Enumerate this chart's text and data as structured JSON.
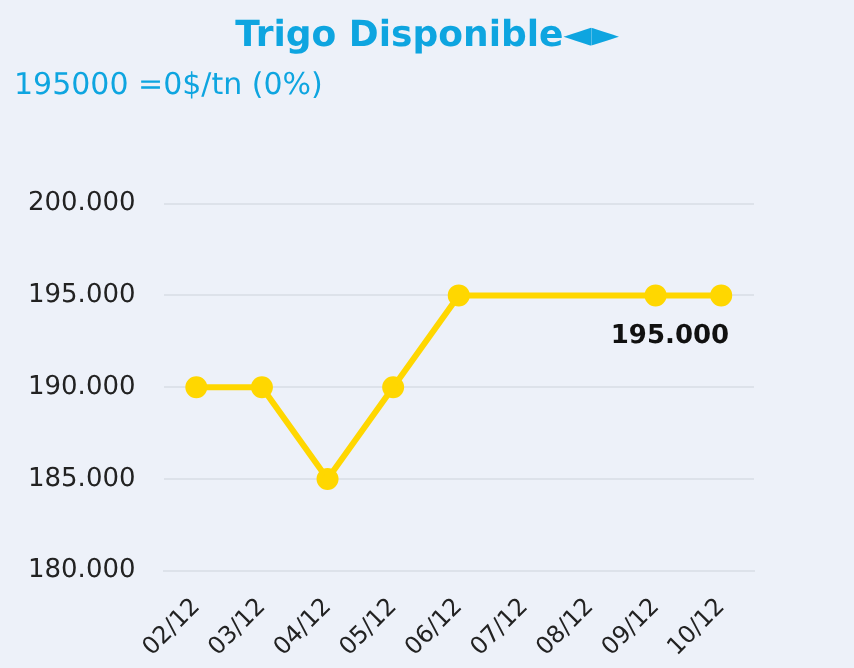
{
  "chart_data": {
    "type": "line",
    "title": "Trigo Disponible◄►",
    "subtitle": "195000 =0$/tn (0%)",
    "categories": [
      "02/12",
      "03/12",
      "04/12",
      "05/12",
      "06/12",
      "07/12",
      "08/12",
      "09/12",
      "10/12"
    ],
    "series": [
      {
        "color": "#ffd700",
        "values": [
          190000,
          190000,
          185000,
          190000,
          195000,
          null,
          null,
          195000,
          195000
        ],
        "value_labels": [
          null,
          null,
          null,
          null,
          null,
          null,
          null,
          null,
          "195.000"
        ]
      }
    ],
    "ylim": [
      180000,
      200000
    ],
    "yticks": [
      {
        "value": 180000,
        "label": "180.000"
      },
      {
        "value": 185000,
        "label": "185.000"
      },
      {
        "value": 190000,
        "label": "190.000"
      },
      {
        "value": 195000,
        "label": "195.000"
      },
      {
        "value": 200000,
        "label": "200.000"
      }
    ],
    "grid": "y",
    "legend": false,
    "marker": "circle",
    "line_style": "solid"
  }
}
